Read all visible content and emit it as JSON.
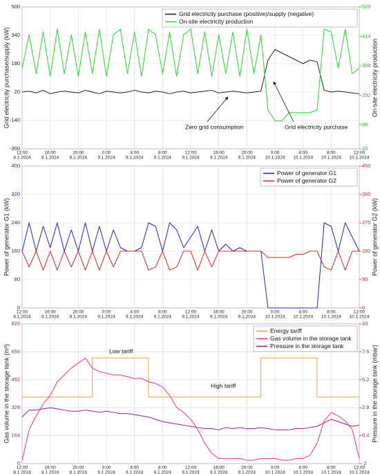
{
  "chart_data": [
    {
      "type": "line",
      "ylabel": "Grid electricity purchase/supply (kW)",
      "y2label": "On-site electricity production",
      "ycolor": "#222222",
      "y2color": "#1db31d",
      "x": [
        "8.1.2024 12:00",
        "8.1.2024 13:00",
        "8.1.2024 14:00",
        "8.1.2024 15:00",
        "8.1.2024 16:00",
        "8.1.2024 17:00",
        "8.1.2024 18:00",
        "8.1.2024 19:00",
        "8.1.2024 20:00",
        "8.1.2024 21:00",
        "8.1.2024 22:00",
        "8.1.2024 23:00",
        "9.1.2024 0:00",
        "9.1.2024 1:00",
        "9.1.2024 2:00",
        "9.1.2024 3:00",
        "9.1.2024 4:00",
        "9.1.2024 5:00",
        "9.1.2024 6:00",
        "9.1.2024 7:00",
        "9.1.2024 8:00",
        "9.1.2024 9:00",
        "9.1.2024 10:00",
        "9.1.2024 11:00",
        "9.1.2024 12:00",
        "9.1.2024 13:00",
        "9.1.2024 14:00",
        "9.1.2024 15:00",
        "9.1.2024 16:00",
        "9.1.2024 17:00",
        "9.1.2024 18:00",
        "9.1.2024 19:00",
        "9.1.2024 20:00",
        "9.1.2024 21:00",
        "9.1.2024 22:00",
        "9.1.2024 23:00",
        "10.1.2024 0:00",
        "10.1.2024 1:00",
        "10.1.2024 2:00",
        "10.1.2024 3:00",
        "10.1.2024 4:00",
        "10.1.2024 5:00",
        "10.1.2024 6:00",
        "10.1.2024 7:00",
        "10.1.2024 8:00",
        "10.1.2024 9:00",
        "10.1.2024 10:00",
        "10.1.2024 11:00",
        "10.1.2024 12:00"
      ],
      "xlim": [
        "8.1.2024 12:00",
        "10.1.2024 12:00"
      ],
      "xticks": [
        {
          "value": "8.1.2024 12:00",
          "label": "12:00",
          "date": "8.1.2024"
        },
        {
          "value": "8.1.2024 16:00",
          "label": "16:00",
          "date": "8.1.2024"
        },
        {
          "value": "8.1.2024 20:00",
          "label": "20:00",
          "date": "8.1.2024"
        },
        {
          "value": "9.1.2024 0:00",
          "label": "0:00",
          "date": "9.1.2024"
        },
        {
          "value": "9.1.2024 4:00",
          "label": "4:00",
          "date": "9.1.2024"
        },
        {
          "value": "9.1.2024 8:00",
          "label": "8:00",
          "date": "9.1.2024"
        },
        {
          "value": "9.1.2024 12:00",
          "label": "12:00",
          "date": "9.1.2024"
        },
        {
          "value": "9.1.2024 16:00",
          "label": "16:00",
          "date": "9.1.2024"
        },
        {
          "value": "9.1.2024 20:00",
          "label": "20:00",
          "date": "9.1.2024"
        },
        {
          "value": "10.1.2024 0:00",
          "label": "0:00",
          "date": "10.1.2024"
        },
        {
          "value": "10.1.2024 4:00",
          "label": "4:00",
          "date": "10.1.2024"
        },
        {
          "value": "10.1.2024 8:00",
          "label": "8:00",
          "date": "10.1.2024"
        },
        {
          "value": "10.1.2024 12:00",
          "label": "12:00",
          "date": "10.1.2024"
        }
      ],
      "ylim": [
        -300,
        500
      ],
      "yticks": [
        -300,
        -140,
        20,
        180,
        340,
        500
      ],
      "y2lim": [
        10,
        520
      ],
      "y2ticks": [
        10,
        96,
        202,
        308,
        414,
        520
      ],
      "grid": true,
      "legend": "upper right",
      "series": [
        {
          "name": "Grid electricity purchase (positive)/supply (negative)",
          "color": "#222222",
          "values": [
            20,
            25,
            15,
            30,
            10,
            20,
            25,
            20,
            15,
            30,
            20,
            10,
            25,
            20,
            15,
            20,
            30,
            20,
            15,
            25,
            20,
            10,
            20,
            25,
            15,
            20,
            25,
            30,
            15,
            20,
            25,
            20,
            15,
            20,
            25,
            200,
            260,
            240,
            220,
            200,
            180,
            200,
            190,
            30,
            20,
            25,
            20,
            15,
            10
          ]
        },
        {
          "name": "On-site electricity production",
          "color": "#22dd22",
          "axis": "y2",
          "values": [
            300,
            420,
            280,
            430,
            270,
            440,
            280,
            420,
            270,
            430,
            280,
            440,
            270,
            420,
            440,
            280,
            430,
            270,
            440,
            420,
            280,
            430,
            270,
            420,
            440,
            280,
            430,
            270,
            420,
            280,
            430,
            270,
            440,
            280,
            420,
            150,
            110,
            110,
            140,
            140,
            140,
            140,
            150,
            440,
            430,
            300,
            440,
            280,
            300
          ]
        }
      ],
      "annotations": [
        {
          "text": "Zero grid consumption"
        },
        {
          "text": "Grid electricity purchase"
        }
      ]
    },
    {
      "type": "line",
      "ylabel": "Power of generator G1 (kW)",
      "y2label": "Power of generator G2 (kW)",
      "ycolor": "#1f1fdd",
      "y2color": "#e82020",
      "x": [
        "8.1.2024 12:00",
        "8.1.2024 13:00",
        "8.1.2024 14:00",
        "8.1.2024 15:00",
        "8.1.2024 16:00",
        "8.1.2024 17:00",
        "8.1.2024 18:00",
        "8.1.2024 19:00",
        "8.1.2024 20:00",
        "8.1.2024 21:00",
        "8.1.2024 22:00",
        "8.1.2024 23:00",
        "9.1.2024 0:00",
        "9.1.2024 1:00",
        "9.1.2024 2:00",
        "9.1.2024 3:00",
        "9.1.2024 4:00",
        "9.1.2024 5:00",
        "9.1.2024 6:00",
        "9.1.2024 7:00",
        "9.1.2024 8:00",
        "9.1.2024 9:00",
        "9.1.2024 10:00",
        "9.1.2024 11:00",
        "9.1.2024 12:00",
        "9.1.2024 13:00",
        "9.1.2024 14:00",
        "9.1.2024 15:00",
        "9.1.2024 16:00",
        "9.1.2024 17:00",
        "9.1.2024 18:00",
        "9.1.2024 19:00",
        "9.1.2024 20:00",
        "9.1.2024 21:00",
        "9.1.2024 22:00",
        "9.1.2024 23:00",
        "10.1.2024 0:00",
        "10.1.2024 1:00",
        "10.1.2024 2:00",
        "10.1.2024 3:00",
        "10.1.2024 4:00",
        "10.1.2024 5:00",
        "10.1.2024 6:00",
        "10.1.2024 7:00",
        "10.1.2024 8:00",
        "10.1.2024 9:00",
        "10.1.2024 10:00",
        "10.1.2024 11:00",
        "10.1.2024 12:00"
      ],
      "xlim": [
        "8.1.2024 12:00",
        "10.1.2024 12:00"
      ],
      "xticks": [
        {
          "value": "8.1.2024 12:00",
          "label": "12:00",
          "date": "8.1.2024"
        },
        {
          "value": "8.1.2024 16:00",
          "label": "16:00",
          "date": "8.1.2024"
        },
        {
          "value": "8.1.2024 20:00",
          "label": "20:00",
          "date": "8.1.2024"
        },
        {
          "value": "9.1.2024 0:00",
          "label": "0:00",
          "date": "9.1.2024"
        },
        {
          "value": "9.1.2024 4:00",
          "label": "4:00",
          "date": "9.1.2024"
        },
        {
          "value": "9.1.2024 8:00",
          "label": "8:00",
          "date": "9.1.2024"
        },
        {
          "value": "9.1.2024 12:00",
          "label": "12:00",
          "date": "9.1.2024"
        },
        {
          "value": "9.1.2024 16:00",
          "label": "16:00",
          "date": "9.1.2024"
        },
        {
          "value": "9.1.2024 20:00",
          "label": "20:00",
          "date": "9.1.2024"
        },
        {
          "value": "10.1.2024 0:00",
          "label": "0:00",
          "date": "10.1.2024"
        },
        {
          "value": "10.1.2024 4:00",
          "label": "4:00",
          "date": "10.1.2024"
        },
        {
          "value": "10.1.2024 8:00",
          "label": "8:00",
          "date": "10.1.2024"
        },
        {
          "value": "10.1.2024 12:00",
          "label": "12:00",
          "date": "10.1.2024"
        }
      ],
      "ylim": [
        0,
        400
      ],
      "yticks": [
        0,
        80,
        160,
        240,
        320,
        400
      ],
      "y2lim": [
        0,
        450
      ],
      "y2ticks": [
        0,
        90,
        180,
        270,
        360,
        450
      ],
      "grid": true,
      "legend": "upper right",
      "series": [
        {
          "name": "Power of generator G1",
          "color": "#1f1fdd",
          "values": [
            160,
            240,
            160,
            230,
            170,
            240,
            160,
            220,
            160,
            240,
            160,
            230,
            160,
            220,
            170,
            160,
            160,
            170,
            240,
            230,
            160,
            240,
            220,
            170,
            200,
            230,
            160,
            220,
            160,
            180,
            160,
            170,
            160,
            160,
            160,
            0,
            0,
            0,
            0,
            0,
            0,
            0,
            0,
            240,
            230,
            160,
            240,
            200,
            160
          ]
        },
        {
          "name": "Power of generator G2",
          "color": "#e82020",
          "axis": "y2",
          "values": [
            180,
            130,
            180,
            120,
            180,
            120,
            180,
            130,
            180,
            120,
            180,
            120,
            180,
            130,
            180,
            180,
            180,
            180,
            120,
            130,
            180,
            120,
            130,
            180,
            180,
            120,
            180,
            130,
            180,
            180,
            180,
            180,
            180,
            180,
            180,
            160,
            160,
            160,
            160,
            170,
            170,
            180,
            180,
            130,
            120,
            180,
            120,
            180,
            180
          ]
        }
      ]
    },
    {
      "type": "line",
      "ylabel": "Gas volume in the storage tank (m³)",
      "y2label": "Pressure in the storage tank (mbar)",
      "ycolor": "#c2185b",
      "y2color": "#9a1a9a",
      "x": [
        "8.1.2024 12:00",
        "8.1.2024 13:00",
        "8.1.2024 14:00",
        "8.1.2024 15:00",
        "8.1.2024 16:00",
        "8.1.2024 17:00",
        "8.1.2024 18:00",
        "8.1.2024 19:00",
        "8.1.2024 20:00",
        "8.1.2024 21:00",
        "8.1.2024 22:00",
        "8.1.2024 23:00",
        "9.1.2024 0:00",
        "9.1.2024 1:00",
        "9.1.2024 2:00",
        "9.1.2024 3:00",
        "9.1.2024 4:00",
        "9.1.2024 5:00",
        "9.1.2024 6:00",
        "9.1.2024 7:00",
        "9.1.2024 8:00",
        "9.1.2024 9:00",
        "9.1.2024 10:00",
        "9.1.2024 11:00",
        "9.1.2024 12:00",
        "9.1.2024 13:00",
        "9.1.2024 14:00",
        "9.1.2024 15:00",
        "9.1.2024 16:00",
        "9.1.2024 17:00",
        "9.1.2024 18:00",
        "9.1.2024 19:00",
        "9.1.2024 20:00",
        "9.1.2024 21:00",
        "9.1.2024 22:00",
        "9.1.2024 23:00",
        "10.1.2024 0:00",
        "10.1.2024 1:00",
        "10.1.2024 2:00",
        "10.1.2024 3:00",
        "10.1.2024 4:00",
        "10.1.2024 5:00",
        "10.1.2024 6:00",
        "10.1.2024 7:00",
        "10.1.2024 8:00",
        "10.1.2024 9:00",
        "10.1.2024 10:00",
        "10.1.2024 11:00",
        "10.1.2024 12:00"
      ],
      "xlim": [
        "8.1.2024 12:00",
        "10.1.2024 12:00"
      ],
      "xticks": [
        {
          "value": "8.1.2024 12:00",
          "label": "12:00",
          "date": "8.1.2024"
        },
        {
          "value": "8.1.2024 16:00",
          "label": "16:00",
          "date": "8.1.2024"
        },
        {
          "value": "8.1.2024 20:00",
          "label": "20:00",
          "date": "8.1.2024"
        },
        {
          "value": "9.1.2024 0:00",
          "label": "0:00",
          "date": "9.1.2024"
        },
        {
          "value": "9.1.2024 4:00",
          "label": "4:00",
          "date": "9.1.2024"
        },
        {
          "value": "9.1.2024 8:00",
          "label": "8:00",
          "date": "9.1.2024"
        },
        {
          "value": "9.1.2024 12:00",
          "label": "12:00",
          "date": "9.1.2024"
        },
        {
          "value": "9.1.2024 16:00",
          "label": "16:00",
          "date": "9.1.2024"
        },
        {
          "value": "9.1.2024 20:00",
          "label": "20:00",
          "date": "9.1.2024"
        },
        {
          "value": "10.1.2024 0:00",
          "label": "0:00",
          "date": "10.1.2024"
        },
        {
          "value": "10.1.2024 4:00",
          "label": "4:00",
          "date": "10.1.2024"
        },
        {
          "value": "10.1.2024 8:00",
          "label": "8:00",
          "date": "10.1.2024"
        },
        {
          "value": "10.1.2024 12:00",
          "label": "12:00",
          "date": "10.1.2024"
        }
      ],
      "ylim": [
        0,
        820
      ],
      "yticks": [
        0,
        164,
        328,
        492,
        656,
        820
      ],
      "y2lim": [
        -2,
        10
      ],
      "y2ticks": [
        -2,
        0.4,
        2.8,
        5.2,
        7.6,
        10
      ],
      "grid": true,
      "legend": "upper right",
      "series": [
        {
          "name": "Energy tariff",
          "color": "#f0a030",
          "step": true,
          "values": [
            390,
            390,
            390,
            390,
            390,
            390,
            390,
            390,
            390,
            390,
            620,
            620,
            620,
            620,
            620,
            620,
            620,
            620,
            390,
            390,
            390,
            390,
            390,
            390,
            390,
            390,
            390,
            390,
            390,
            390,
            390,
            390,
            390,
            390,
            620,
            620,
            620,
            620,
            620,
            620,
            620,
            620,
            390,
            390,
            390,
            390,
            390,
            390,
            390
          ]
        },
        {
          "name": "Gas volume in the storage tank",
          "color": "#ff2d8f",
          "values": [
            20,
            200,
            280,
            350,
            400,
            480,
            520,
            560,
            590,
            620,
            560,
            540,
            530,
            520,
            520,
            510,
            500,
            500,
            480,
            470,
            450,
            400,
            330,
            300,
            260,
            200,
            120,
            60,
            30,
            30,
            30,
            30,
            20,
            20,
            30,
            30,
            30,
            20,
            20,
            30,
            30,
            50,
            120,
            250,
            300,
            280,
            250,
            200,
            30
          ]
        },
        {
          "name": "Pressure in the storage tank",
          "color": "#9a1a9a",
          "axis": "y2",
          "values": [
            2.0,
            2.6,
            2.6,
            2.7,
            2.8,
            2.7,
            2.6,
            2.5,
            2.5,
            2.6,
            2.5,
            2.4,
            2.5,
            2.4,
            2.3,
            2.3,
            2.2,
            2.1,
            2.0,
            1.8,
            1.6,
            1.5,
            1.4,
            1.3,
            1.2,
            1.1,
            1.0,
            1.0,
            0.9,
            1.1,
            1.0,
            1.1,
            1.0,
            1.0,
            1.1,
            1.0,
            0.9,
            0.9,
            0.9,
            1.0,
            1.0,
            1.1,
            1.2,
            1.5,
            1.8,
            1.6,
            1.4,
            1.2,
            1.3
          ]
        }
      ],
      "annotations": [
        {
          "text": "Low tariff"
        },
        {
          "text": "High tariff"
        }
      ]
    }
  ]
}
